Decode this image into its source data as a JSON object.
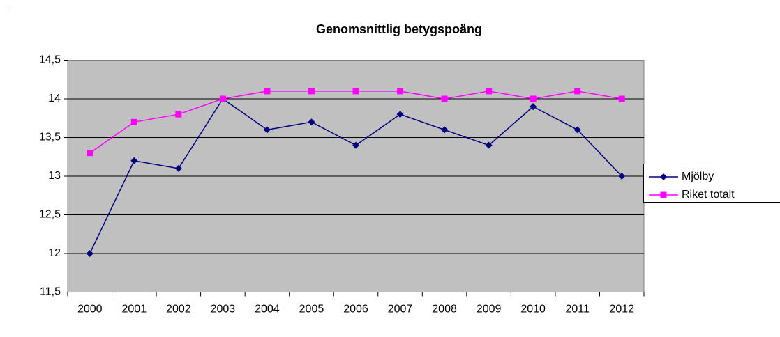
{
  "chart_data": {
    "type": "line",
    "title": "Genomsnittlig betygspoäng",
    "categories": [
      "2000",
      "2001",
      "2002",
      "2003",
      "2004",
      "2005",
      "2006",
      "2007",
      "2008",
      "2009",
      "2010",
      "2011",
      "2012"
    ],
    "series": [
      {
        "name": "Mjölby",
        "color": "#000080",
        "marker": "diamond",
        "values": [
          12,
          13.2,
          13.1,
          14,
          13.6,
          13.7,
          13.4,
          13.8,
          13.6,
          13.4,
          13.9,
          13.6,
          13.0
        ]
      },
      {
        "name": "Riket totalt",
        "color": "#ff00ff",
        "marker": "square",
        "values": [
          13.3,
          13.7,
          13.8,
          14.0,
          14.1,
          14.1,
          14.1,
          14.1,
          14.0,
          14.1,
          14.0,
          14.1,
          14.0
        ]
      }
    ],
    "ylim": [
      11.5,
      14.5
    ],
    "yticks": [
      {
        "value": 11.5,
        "label": "11,5"
      },
      12,
      {
        "value": 12.5,
        "label": "12,5"
      },
      13,
      {
        "value": 13.5,
        "label": "13,5"
      },
      14,
      {
        "value": 14.5,
        "label": "14,5"
      }
    ],
    "grid": true,
    "legend": "right"
  }
}
